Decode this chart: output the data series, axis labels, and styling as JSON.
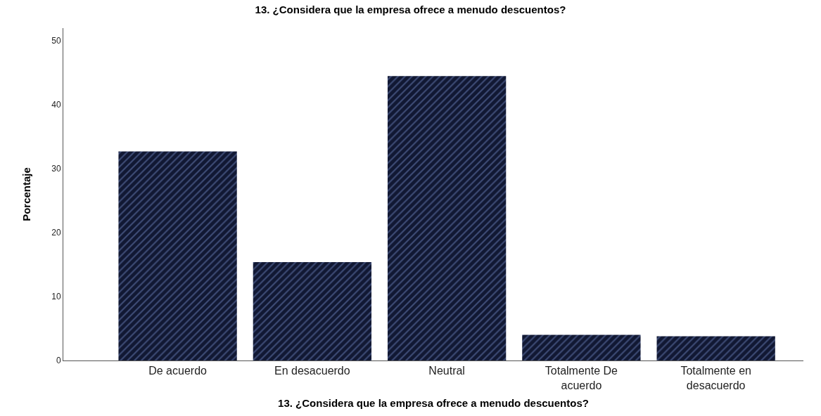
{
  "chart_data": {
    "type": "bar",
    "title": "13. ¿Considera que la empresa ofrece a menudo descuentos?",
    "xlabel": "13. ¿Considera que la empresa ofrece a menudo descuentos?",
    "ylabel": "Porcentaje",
    "categories": [
      "De acuerdo",
      "En desacuerdo",
      "Neutral",
      "Totalmente De acuerdo",
      "Totalmente en desacuerdo"
    ],
    "values": [
      32.7,
      15.4,
      44.5,
      4.0,
      3.8
    ],
    "color": "#111833",
    "ylim": [
      0,
      52
    ],
    "yticks": [
      0,
      10,
      20,
      30,
      40,
      50
    ]
  }
}
